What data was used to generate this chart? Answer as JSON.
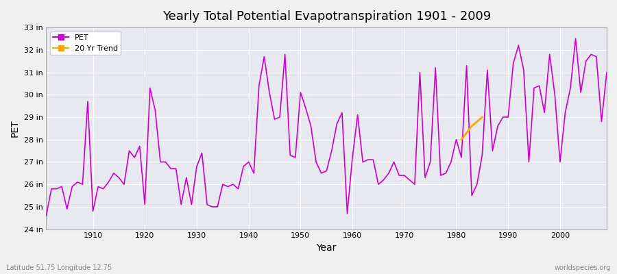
{
  "title": "Yearly Total Potential Evapotranspiration 1901 - 2009",
  "xlabel": "Year",
  "ylabel": "PET",
  "footnote_left": "Latitude 51.75 Longitude 12.75",
  "footnote_right": "worldspecies.org",
  "pet_color": "#CC00CC",
  "trend_color": "#FFA500",
  "bg_color": "#F0F0F0",
  "plot_bg": "#E8E8F0",
  "grid_color": "#FFFFFF",
  "ylim": [
    24,
    33
  ],
  "yticks": [
    24,
    25,
    26,
    27,
    28,
    29,
    30,
    31,
    32,
    33
  ],
  "ytick_labels": [
    "24 in",
    "25 in",
    "26 in",
    "27 in",
    "28 in",
    "29 in",
    "30 in",
    "31 in",
    "32 in",
    "33 in"
  ],
  "years": [
    1901,
    1902,
    1903,
    1904,
    1905,
    1906,
    1907,
    1908,
    1909,
    1910,
    1911,
    1912,
    1913,
    1914,
    1915,
    1916,
    1917,
    1918,
    1919,
    1920,
    1921,
    1922,
    1923,
    1924,
    1925,
    1926,
    1927,
    1928,
    1929,
    1930,
    1931,
    1932,
    1933,
    1934,
    1935,
    1936,
    1937,
    1938,
    1939,
    1940,
    1941,
    1942,
    1943,
    1944,
    1945,
    1946,
    1947,
    1948,
    1949,
    1950,
    1951,
    1952,
    1953,
    1954,
    1955,
    1956,
    1957,
    1958,
    1959,
    1960,
    1961,
    1962,
    1963,
    1964,
    1965,
    1966,
    1967,
    1968,
    1969,
    1970,
    1971,
    1972,
    1973,
    1974,
    1975,
    1976,
    1977,
    1978,
    1979,
    1980,
    1981,
    1982,
    1983,
    1984,
    1985,
    1986,
    1987,
    1988,
    1989,
    1990,
    1991,
    1992,
    1993,
    1994,
    1995,
    1996,
    1997,
    1998,
    1999,
    2000,
    2001,
    2002,
    2003,
    2004,
    2005,
    2006,
    2007,
    2008,
    2009
  ],
  "pet_values": [
    24.6,
    25.8,
    25.8,
    25.9,
    24.9,
    25.9,
    26.1,
    26.0,
    29.7,
    24.8,
    25.9,
    25.8,
    26.1,
    26.5,
    26.3,
    26.0,
    27.5,
    27.2,
    27.7,
    25.1,
    30.3,
    29.3,
    27.0,
    27.0,
    26.7,
    26.7,
    25.1,
    26.3,
    25.1,
    26.8,
    27.4,
    25.1,
    25.0,
    25.0,
    26.0,
    25.9,
    26.0,
    25.8,
    26.8,
    27.0,
    26.5,
    30.4,
    31.7,
    30.1,
    28.9,
    29.0,
    31.8,
    27.3,
    27.2,
    30.1,
    29.4,
    28.6,
    27.0,
    26.5,
    26.6,
    27.5,
    28.7,
    29.2,
    24.7,
    27.2,
    29.1,
    27.0,
    27.1,
    27.1,
    26.0,
    26.2,
    26.5,
    27.0,
    26.4,
    26.4,
    26.2,
    26.0,
    31.0,
    26.3,
    27.0,
    31.2,
    26.4,
    26.5,
    27.0,
    28.0,
    27.2,
    31.3,
    25.5,
    26.0,
    27.3,
    31.1,
    27.5,
    28.6,
    29.0,
    29.0,
    31.4,
    32.2,
    31.1,
    27.0,
    30.3,
    30.4,
    29.2,
    31.8,
    30.0,
    27.0,
    29.2,
    30.3,
    32.5,
    30.1,
    31.5,
    31.8,
    31.7,
    28.8,
    31.0
  ],
  "trend_years": [
    1981,
    1982,
    1983,
    1984,
    1985
  ],
  "trend_values": [
    28.0,
    28.3,
    28.6,
    28.8,
    29.0
  ]
}
